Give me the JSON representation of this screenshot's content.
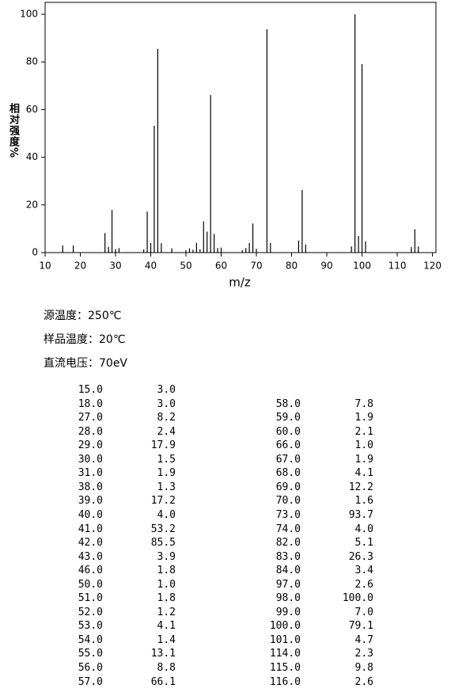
{
  "chart_data": {
    "type": "stem",
    "x_label": "m/z",
    "y_label": "相对强度%",
    "x": [
      15,
      18,
      27,
      28,
      29,
      30,
      31,
      38,
      39,
      40,
      41,
      42,
      43,
      46,
      50,
      51,
      52,
      53,
      54,
      55,
      56,
      57,
      58,
      59,
      60,
      66,
      67,
      68,
      69,
      70,
      73,
      74,
      82,
      83,
      84,
      97,
      98,
      99,
      100,
      101,
      114,
      115,
      116
    ],
    "values": [
      3.0,
      3.0,
      8.2,
      2.4,
      17.9,
      1.5,
      1.9,
      1.3,
      17.2,
      4.0,
      53.2,
      85.5,
      3.9,
      1.8,
      1.0,
      1.8,
      1.2,
      4.1,
      1.4,
      13.1,
      8.8,
      66.1,
      7.8,
      1.9,
      2.1,
      1.0,
      1.9,
      4.1,
      12.2,
      1.6,
      93.7,
      4.0,
      5.1,
      26.3,
      3.4,
      2.6,
      100.0,
      7.0,
      79.1,
      4.7,
      2.3,
      9.8,
      2.6
    ],
    "color": "#000000",
    "xlim": [
      10,
      121
    ],
    "xticks": [
      10,
      20,
      30,
      40,
      50,
      60,
      70,
      80,
      90,
      100,
      110,
      120
    ],
    "ylim": [
      0,
      105
    ],
    "yticks": [
      0,
      20,
      40,
      60,
      80,
      100
    ]
  },
  "info": [
    "源温度：250℃",
    "样品温度：20℃",
    "直流电压：70eV"
  ],
  "table": {
    "left": [
      [
        "15.0",
        "3.0"
      ],
      [
        "18.0",
        "3.0"
      ],
      [
        "27.0",
        "8.2"
      ],
      [
        "28.0",
        "2.4"
      ],
      [
        "29.0",
        "17.9"
      ],
      [
        "30.0",
        "1.5"
      ],
      [
        "31.0",
        "1.9"
      ],
      [
        "38.0",
        "1.3"
      ],
      [
        "39.0",
        "17.2"
      ],
      [
        "40.0",
        "4.0"
      ],
      [
        "41.0",
        "53.2"
      ],
      [
        "42.0",
        "85.5"
      ],
      [
        "43.0",
        "3.9"
      ],
      [
        "46.0",
        "1.8"
      ],
      [
        "50.0",
        "1.0"
      ],
      [
        "51.0",
        "1.8"
      ],
      [
        "52.0",
        "1.2"
      ],
      [
        "53.0",
        "4.1"
      ],
      [
        "54.0",
        "1.4"
      ],
      [
        "55.0",
        "13.1"
      ],
      [
        "56.0",
        "8.8"
      ],
      [
        "57.0",
        "66.1"
      ]
    ],
    "right": [
      [
        "58.0",
        "7.8"
      ],
      [
        "59.0",
        "1.9"
      ],
      [
        "60.0",
        "2.1"
      ],
      [
        "66.0",
        "1.0"
      ],
      [
        "67.0",
        "1.9"
      ],
      [
        "68.0",
        "4.1"
      ],
      [
        "69.0",
        "12.2"
      ],
      [
        "70.0",
        "1.6"
      ],
      [
        "73.0",
        "93.7"
      ],
      [
        "74.0",
        "4.0"
      ],
      [
        "82.0",
        "5.1"
      ],
      [
        "83.0",
        "26.3"
      ],
      [
        "84.0",
        "3.4"
      ],
      [
        "97.0",
        "2.6"
      ],
      [
        "98.0",
        "100.0"
      ],
      [
        "99.0",
        "7.0"
      ],
      [
        "100.0",
        "79.1"
      ],
      [
        "101.0",
        "4.7"
      ],
      [
        "114.0",
        "2.3"
      ],
      [
        "115.0",
        "9.8"
      ],
      [
        "116.0",
        "2.6"
      ]
    ]
  }
}
